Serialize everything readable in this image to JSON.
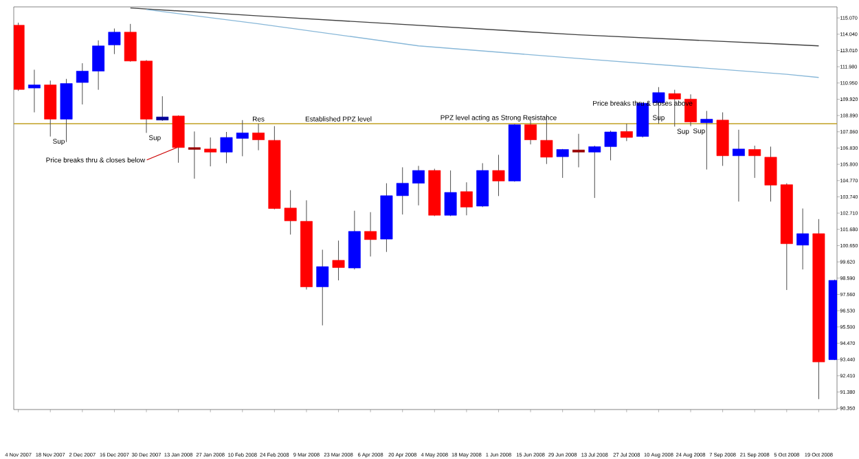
{
  "chart_data": {
    "type": "candlestick",
    "x": [
      "2007-11-04",
      "2007-11-11",
      "2007-11-18",
      "2007-11-25",
      "2007-12-02",
      "2007-12-09",
      "2007-12-16",
      "2007-12-23",
      "2007-12-30",
      "2008-01-06",
      "2008-01-13",
      "2008-01-20",
      "2008-01-27",
      "2008-02-03",
      "2008-02-10",
      "2008-02-17",
      "2008-02-24",
      "2008-03-02",
      "2008-03-09",
      "2008-03-16",
      "2008-03-23",
      "2008-03-30",
      "2008-04-06",
      "2008-04-13",
      "2008-04-20",
      "2008-04-27",
      "2008-05-04",
      "2008-05-11",
      "2008-05-18",
      "2008-05-25",
      "2008-06-01",
      "2008-06-08",
      "2008-06-15",
      "2008-06-22",
      "2008-06-29",
      "2008-07-06",
      "2008-07-13",
      "2008-07-20",
      "2008-07-27",
      "2008-08-03",
      "2008-08-10",
      "2008-08-17",
      "2008-08-24",
      "2008-08-31",
      "2008-09-07",
      "2008-09-14",
      "2008-09-21",
      "2008-09-28",
      "2008-10-05",
      "2008-10-12",
      "2008-10-19",
      "2008-10-26"
    ],
    "ohlc": [
      [
        114.61,
        114.77,
        110.45,
        110.54
      ],
      [
        110.63,
        111.79,
        109.09,
        110.83
      ],
      [
        110.83,
        111.1,
        107.56,
        108.66
      ],
      [
        108.66,
        111.21,
        107.21,
        110.92
      ],
      [
        110.98,
        112.2,
        109.59,
        111.7
      ],
      [
        111.7,
        113.65,
        110.52,
        113.3
      ],
      [
        113.36,
        114.4,
        112.78,
        114.17
      ],
      [
        114.17,
        114.69,
        112.3,
        112.34
      ],
      [
        112.34,
        112.4,
        107.79,
        108.66
      ],
      [
        108.6,
        110.11,
        108.55,
        108.8
      ],
      [
        108.86,
        108.9,
        105.9,
        106.86
      ],
      [
        106.86,
        107.88,
        104.89,
        106.74
      ],
      [
        106.77,
        107.5,
        105.67,
        106.57
      ],
      [
        106.57,
        107.85,
        105.87,
        107.5
      ],
      [
        107.44,
        108.6,
        106.31,
        107.79
      ],
      [
        107.79,
        108.37,
        106.69,
        107.35
      ],
      [
        107.32,
        108.22,
        102.95,
        103.0
      ],
      [
        103.03,
        104.16,
        101.35,
        102.22
      ],
      [
        102.19,
        103.52,
        97.87,
        98.04
      ],
      [
        98.04,
        100.39,
        95.6,
        99.32
      ],
      [
        99.72,
        100.97,
        98.45,
        99.26
      ],
      [
        99.23,
        102.86,
        99.14,
        101.55
      ],
      [
        101.55,
        102.77,
        99.96,
        101.03
      ],
      [
        101.06,
        104.6,
        100.25,
        103.81
      ],
      [
        103.81,
        105.61,
        102.62,
        104.6
      ],
      [
        104.6,
        105.7,
        103.2,
        105.41
      ],
      [
        105.41,
        105.52,
        102.52,
        102.57
      ],
      [
        102.57,
        105.41,
        102.52,
        104.02
      ],
      [
        104.07,
        104.66,
        102.57,
        103.09
      ],
      [
        103.15,
        105.87,
        103.09,
        105.41
      ],
      [
        105.41,
        106.4,
        103.79,
        104.74
      ],
      [
        104.74,
        108.35,
        104.7,
        108.31
      ],
      [
        108.31,
        108.6,
        107.06,
        107.35
      ],
      [
        107.32,
        108.95,
        105.82,
        106.25
      ],
      [
        106.28,
        106.77,
        104.94,
        106.74
      ],
      [
        106.71,
        107.73,
        105.61,
        106.57
      ],
      [
        106.57,
        106.98,
        103.67,
        106.92
      ],
      [
        106.92,
        107.93,
        106.05,
        107.85
      ],
      [
        107.88,
        108.37,
        107.27,
        107.5
      ],
      [
        107.56,
        109.72,
        107.5,
        109.67
      ],
      [
        109.7,
        110.69,
        108.37,
        110.34
      ],
      [
        110.28,
        110.52,
        108.19,
        109.93
      ],
      [
        109.93,
        110.23,
        108.22,
        108.48
      ],
      [
        108.43,
        109.18,
        105.47,
        108.66
      ],
      [
        108.6,
        109.09,
        105.7,
        106.34
      ],
      [
        106.34,
        107.99,
        103.44,
        106.77
      ],
      [
        106.74,
        106.98,
        104.94,
        106.34
      ],
      [
        106.25,
        106.92,
        103.44,
        104.48
      ],
      [
        104.51,
        104.6,
        97.84,
        100.77
      ],
      [
        100.68,
        103.0,
        99.14,
        101.41
      ],
      [
        101.41,
        102.33,
        90.93,
        93.28
      ],
      [
        93.43,
        98.5,
        93.4,
        98.45
      ]
    ],
    "colors": [
      "#ff0000",
      "#0000ff",
      "#ff0000",
      "#0000ff",
      "#0000ff",
      "#0000ff",
      "#0000ff",
      "#ff0000",
      "#ff0000",
      "#000099",
      "#ff0000",
      "#990000",
      "#ff0000",
      "#0000ff",
      "#0000ff",
      "#ff0000",
      "#ff0000",
      "#ff0000",
      "#ff0000",
      "#0000ff",
      "#ff0000",
      "#0000ff",
      "#ff0000",
      "#0000ff",
      "#0000ff",
      "#0000ff",
      "#ff0000",
      "#0000ff",
      "#ff0000",
      "#0000ff",
      "#ff0000",
      "#0000ff",
      "#ff0000",
      "#ff0000",
      "#0000ff",
      "#990000",
      "#0000ff",
      "#0000ff",
      "#ff0000",
      "#0000ff",
      "#0000ff",
      "#ff0000",
      "#ff0000",
      "#0000ff",
      "#ff0000",
      "#0000ff",
      "#ff0000",
      "#ff0000",
      "#ff0000",
      "#0000ff",
      "#ff0000",
      "#0000ff"
    ],
    "series": [
      {
        "type": "line",
        "color": "#404040",
        "values": [
          null,
          null,
          null,
          null,
          null,
          null,
          null,
          115.7,
          null,
          null,
          null,
          null,
          null,
          null,
          null,
          115.2,
          null,
          null,
          null,
          null,
          null,
          null,
          null,
          null,
          null,
          114.6,
          null,
          null,
          null,
          null,
          null,
          null,
          null,
          null,
          null,
          114.0,
          null,
          null,
          null,
          null,
          null,
          null,
          null,
          null,
          null,
          null,
          null,
          null,
          113.4,
          null,
          113.3,
          null
        ]
      },
      {
        "type": "line",
        "color": "#87b7d8",
        "values": [
          null,
          null,
          null,
          null,
          null,
          null,
          null,
          null,
          115.6,
          null,
          null,
          null,
          null,
          null,
          null,
          114.7,
          null,
          null,
          null,
          null,
          null,
          null,
          null,
          null,
          null,
          113.3,
          null,
          null,
          null,
          null,
          null,
          null,
          null,
          null,
          null,
          112.5,
          null,
          null,
          null,
          null,
          null,
          null,
          null,
          null,
          null,
          null,
          null,
          null,
          111.5,
          null,
          111.3,
          null
        ]
      }
    ],
    "xlim": [
      "2007-11-02",
      "2008-10-27"
    ],
    "xticks": [
      {
        "value": "2007-11-04",
        "label": "4 Nov 2007"
      },
      {
        "value": "2007-11-18",
        "label": "18 Nov 2007"
      },
      {
        "value": "2007-12-02",
        "label": "2 Dec 2007"
      },
      {
        "value": "2007-12-16",
        "label": "16 Dec 2007"
      },
      {
        "value": "2007-12-30",
        "label": "30 Dec 2007"
      },
      {
        "value": "2008-01-13",
        "label": "13 Jan 2008"
      },
      {
        "value": "2008-01-27",
        "label": "27 Jan 2008"
      },
      {
        "value": "2008-02-10",
        "label": "10 Feb 2008"
      },
      {
        "value": "2008-02-24",
        "label": "24 Feb 2008"
      },
      {
        "value": "2008-03-09",
        "label": "9 Mar 2008"
      },
      {
        "value": "2008-03-23",
        "label": "23 Mar 2008"
      },
      {
        "value": "2008-04-06",
        "label": "6 Apr 2008"
      },
      {
        "value": "2008-04-20",
        "label": "20 Apr 2008"
      },
      {
        "value": "2008-05-04",
        "label": "4 May 2008"
      },
      {
        "value": "2008-05-18",
        "label": "18 May 2008"
      },
      {
        "value": "2008-06-01",
        "label": "1 Jun 2008"
      },
      {
        "value": "2008-06-15",
        "label": "15 Jun 2008"
      },
      {
        "value": "2008-06-29",
        "label": "29 Jun 2008"
      },
      {
        "value": "2008-07-13",
        "label": "13 Jul 2008"
      },
      {
        "value": "2008-07-27",
        "label": "27 Jul 2008"
      },
      {
        "value": "2008-08-10",
        "label": "10 Aug 2008"
      },
      {
        "value": "2008-08-24",
        "label": "24 Aug 2008"
      },
      {
        "value": "2008-09-07",
        "label": "7 Sep 2008"
      },
      {
        "value": "2008-09-21",
        "label": "21 Sep 2008"
      },
      {
        "value": "2008-10-05",
        "label": "5 Oct 2008"
      },
      {
        "value": "2008-10-19",
        "label": "19 Oct 2008"
      }
    ],
    "ylim": [
      90.27,
      115.77
    ],
    "yticks": [
      {
        "value": 115.07,
        "label": "115.070"
      },
      {
        "value": 114.04,
        "label": "114.040"
      },
      {
        "value": 113.01,
        "label": "113.010"
      },
      {
        "value": 111.98,
        "label": "111.980"
      },
      {
        "value": 110.95,
        "label": "110.950"
      },
      {
        "value": 109.92,
        "label": "109.920"
      },
      {
        "value": 108.89,
        "label": "108.890"
      },
      {
        "value": 107.86,
        "label": "107.860"
      },
      {
        "value": 106.83,
        "label": "106.830"
      },
      {
        "value": 105.8,
        "label": "105.800"
      },
      {
        "value": 104.77,
        "label": "104.770"
      },
      {
        "value": 103.74,
        "label": "103.740"
      },
      {
        "value": 102.71,
        "label": "102.710"
      },
      {
        "value": 101.68,
        "label": "101.680"
      },
      {
        "value": 100.65,
        "label": "100.650"
      },
      {
        "value": 99.62,
        "label": "99.620"
      },
      {
        "value": 98.59,
        "label": "98.590"
      },
      {
        "value": 97.56,
        "label": "97.560"
      },
      {
        "value": 96.53,
        "label": "96.530"
      },
      {
        "value": 95.5,
        "label": "95.500"
      },
      {
        "value": 94.47,
        "label": "94.470"
      },
      {
        "value": 93.44,
        "label": "93.440"
      },
      {
        "value": 92.41,
        "label": "92.410"
      },
      {
        "value": 91.38,
        "label": "91.380"
      },
      {
        "value": 90.35,
        "label": "90.350"
      }
    ],
    "ref_lines": [
      {
        "axis": "y",
        "value": 108.37,
        "color": "#c0a020"
      }
    ],
    "annotations": [
      {
        "text": "Sup",
        "x": "2007-11-18",
        "y": 107.56
      },
      {
        "text": "Sup",
        "x": "2007-12-30",
        "y": 107.79
      },
      {
        "text": "Res",
        "x": "2008-02-17",
        "y": 108.37
      },
      {
        "text": "Price breaks thru & closes below",
        "x": "2008-01-13",
        "y": 106.86
      },
      {
        "text": "Established PPZ level",
        "x": "2008-03-23",
        "y": 108.37
      },
      {
        "text": "PPZ level acting as Strong Resistance",
        "x": "2008-06-01",
        "y": 108.37
      },
      {
        "text": "Price breaks thru & closes above",
        "x": "2008-08-03",
        "y": 109.67
      },
      {
        "text": "Sup",
        "x": "2008-08-10",
        "y": 108.37
      },
      {
        "text": "Sup",
        "x": "2008-08-17",
        "y": 108.19
      },
      {
        "text": "Sup",
        "x": "2008-08-24",
        "y": 108.22
      }
    ]
  }
}
